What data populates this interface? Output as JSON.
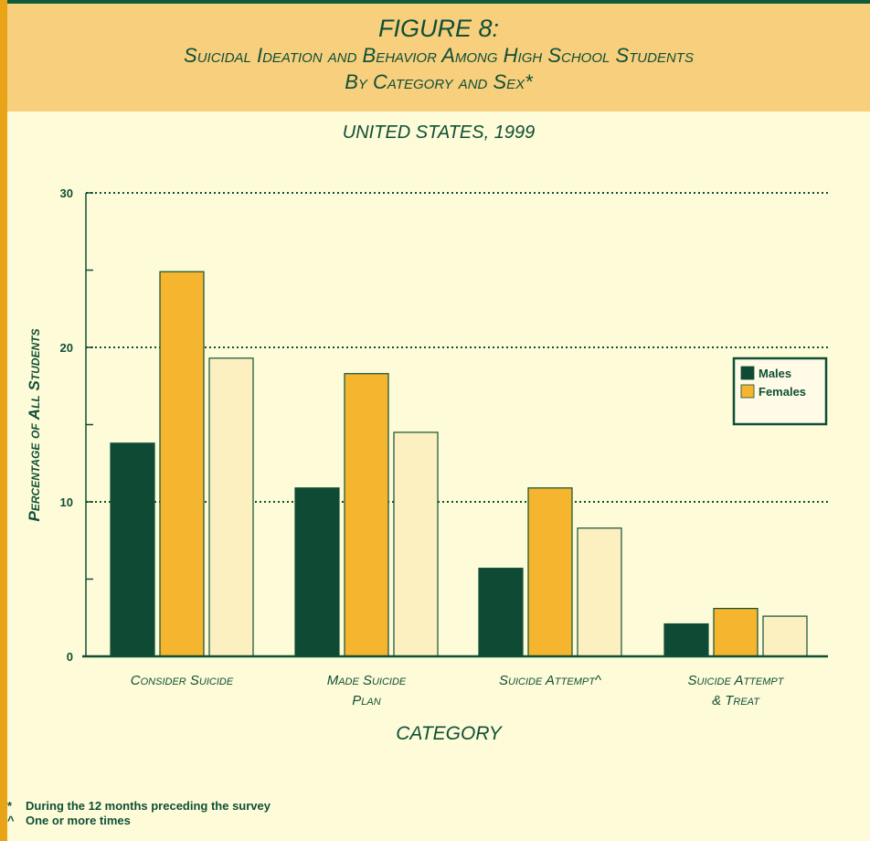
{
  "header": {
    "title": "FIGURE 8:",
    "subtitle_line1": "Suicidal Ideation and Behavior Among High School Students",
    "subtitle_line2": "By Category and Sex*",
    "region_year": "UNITED STATES, 1999"
  },
  "chart_data": {
    "type": "bar",
    "categories": [
      [
        "Consider Suicide"
      ],
      [
        "Made Suicide",
        "Plan"
      ],
      [
        "Suicide Attempt^"
      ],
      [
        "Suicide Attempt",
        "& Treat"
      ]
    ],
    "series": [
      {
        "name": "Males",
        "values": [
          13.8,
          10.9,
          5.7,
          2.1
        ]
      },
      {
        "name": "Females",
        "values": [
          24.9,
          18.3,
          10.9,
          3.1
        ]
      },
      {
        "name": "",
        "values": [
          19.3,
          14.5,
          8.3,
          2.6
        ]
      }
    ],
    "ylabel": "Percentage of All Students",
    "xlabel": "CATEGORY",
    "ylim": [
      0,
      30
    ],
    "yticks": [
      0,
      10,
      20,
      30
    ],
    "grid": true,
    "legend_position": "right"
  },
  "colors": {
    "males": "#0f4a34",
    "females": "#f5b52f",
    "total": "#fdf0c0",
    "text": "#0f4f36",
    "header_bg": "#f7cf7d",
    "page_bg": "#fefcd8",
    "border": "#e8a317"
  },
  "footnotes": [
    {
      "symbol": "*",
      "text": "During the 12 months preceding the survey"
    },
    {
      "symbol": "^",
      "text": "One or more times"
    }
  ]
}
